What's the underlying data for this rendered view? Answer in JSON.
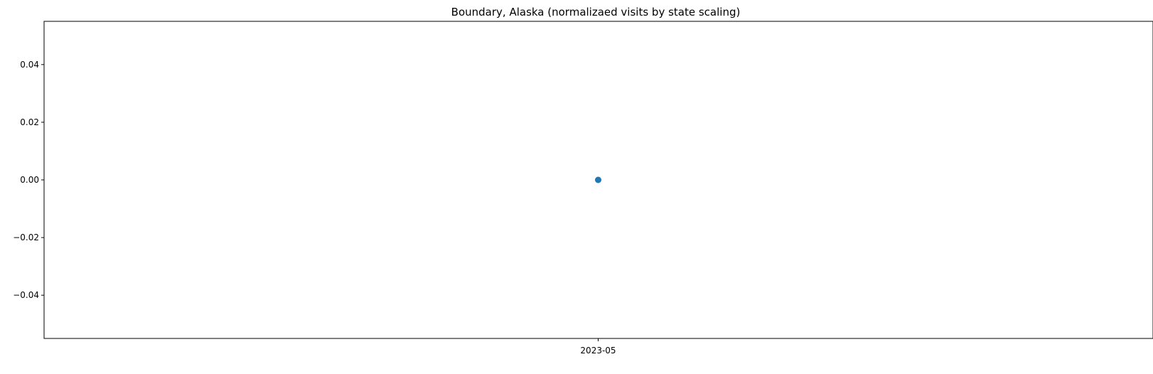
{
  "chart_data": {
    "type": "scatter",
    "title": "Boundary, Alaska (normalizaed visits by state scaling)",
    "xlabel": "",
    "ylabel": "",
    "x_categories": [
      "2023-05"
    ],
    "series": [
      {
        "color": "#1f77b4",
        "points": [
          {
            "x": "2023-05",
            "y": 0.0
          }
        ]
      }
    ],
    "ylim": [
      -0.055,
      0.055
    ],
    "y_ticks": [
      -0.04,
      -0.02,
      0.0,
      0.02,
      0.04
    ],
    "y_tick_labels": [
      "−0.04",
      "−0.02",
      "0.00",
      "0.02",
      "0.04"
    ],
    "grid": false,
    "legend": "none"
  }
}
